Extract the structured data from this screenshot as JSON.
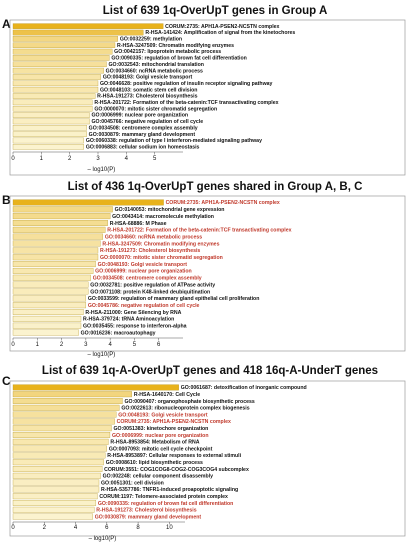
{
  "figure": {
    "colors": {
      "bar_dark": "#e8b21c",
      "bar_light": "#fbf3cf",
      "bar_stroke": "#b0901a",
      "highlight_text": "#c0392b",
      "frame": "#9a9a9a"
    }
  },
  "chart_data": [
    {
      "panel": "A",
      "type": "bar",
      "orientation": "horizontal",
      "title": "List of 639 1q-OverUpT genes in Group A",
      "xlabel": "– log10(P)",
      "xlim": [
        0,
        6
      ],
      "xticks": [
        "0",
        "1",
        "2",
        "3",
        "4",
        "5"
      ],
      "categories": [
        "CORUM:2735: APH1A-PSEN2-NCSTN complex",
        "R-HSA-141424: Amplification of signal from the kinetochores",
        "GO:0032259: methylation",
        "R-HSA-3247509: Chromatin modifying enzymes",
        "GO:0042157: lipoprotein metabolic process",
        "GO:0090335: regulation of brown fat cell differentiation",
        "GO:0032543: mitochondrial translation",
        "GO:0034660: ncRNA metabolic process",
        "GO:0048193: Golgi vesicle transport",
        "GO:0046628: positive regulation of insulin receptor signaling pathway",
        "GO:0048103: somatic stem cell division",
        "R-HSA-191273: Cholesterol biosynthesis",
        "R-HSA-201722: Formation of the beta-catenin:TCF transactivating complex",
        "GO:0000070: mitotic sister chromatid segregation",
        "GO:0006999: nuclear pore organization",
        "GO:0045766: negative regulation of cell cycle",
        "GO:0034508: centromere complex assembly",
        "GO:0030879: mammary gland development",
        "GO:0060338: regulation of type I interferon-mediated signaling pathway",
        "GO:0006883: cellular sodium ion homeostasis"
      ],
      "values": [
        5.3,
        4.6,
        3.7,
        3.6,
        3.5,
        3.4,
        3.3,
        3.2,
        3.1,
        3.0,
        3.0,
        2.9,
        2.8,
        2.8,
        2.7,
        2.7,
        2.6,
        2.6,
        2.5,
        2.5
      ],
      "highlighted": []
    },
    {
      "panel": "B",
      "type": "bar",
      "orientation": "horizontal",
      "title": "List of 436 1q-OverUpT genes shared in Group A, B, C",
      "xlabel": "– log10(P)",
      "xlim": [
        0,
        7
      ],
      "xticks": [
        "0",
        "1",
        "2",
        "3",
        "4",
        "5",
        "6"
      ],
      "categories": [
        "CORUM:2735: APH1A-PSEN2-NCSTN complex",
        "GO:0140053: mitochondrial gene expression",
        "GO:0043414: macromolecule methylation",
        "R-HSA-68886: M Phase",
        "R-HSA-201722: Formation of the beta-catenin:TCF transactivating complex",
        "GO:0034660: ncRNA metabolic process",
        "R-HSA-3247509: Chromatin modifying enzymes",
        "R-HSA-191273: Cholesterol biosynthesis",
        "GO:0000070: mitotic sister chromatid segregation",
        "GO:0048193: Golgi vesicle transport",
        "GO:0006999: nuclear pore organization",
        "GO:0034508: centromere complex assembly",
        "GO:0032781: positive regulation of ATPase activity",
        "GO:0071108: protein K48-linked deubiquitination",
        "GO:0033599: regulation of mammary gland epithelial cell proliferation",
        "GO:0045786: negative regulation of cell cycle",
        "R-HSA-211000: Gene Silencing by RNA",
        "R-HSA-379724: tRNA Aminoacylation",
        "GO:0035455: response to interferon-alpha",
        "GO:0016236: macroautophagy"
      ],
      "values": [
        6.2,
        4.1,
        4.0,
        3.9,
        3.8,
        3.7,
        3.6,
        3.5,
        3.5,
        3.4,
        3.3,
        3.2,
        3.1,
        3.1,
        3.0,
        3.0,
        2.9,
        2.8,
        2.8,
        2.7
      ],
      "highlighted": [
        0,
        4,
        5,
        6,
        7,
        8,
        9,
        10,
        11,
        15
      ]
    },
    {
      "panel": "C",
      "type": "bar",
      "orientation": "horizontal",
      "title": "List of 639 1q-A-OverUpT genes and 418 16q-A-UnderT genes",
      "xlabel": "– log10(P)",
      "xlim": [
        0,
        11
      ],
      "xticks": [
        "0",
        "2",
        "4",
        "6",
        "8",
        "10"
      ],
      "categories": [
        "GO:0061687: detoxification of inorganic compound",
        "R-HSA-1640170: Cell Cycle",
        "GO:0090407: organophosphate biosynthetic process",
        "GO:0022613: ribonucleoprotein complex biogenesis",
        "GO:0048193: Golgi vesicle transport",
        "CORUM:2735: APH1A-PSEN2-NCSTN complex",
        "GO:0051383: kinetochore organization",
        "GO:0006999: nuclear pore organization",
        "R-HSA-8953854: Metabolism of RNA",
        "GO:0007093: mitotic cell cycle checkpoint",
        "R-HSA-8953897: Cellular responses to external stimuli",
        "GO:0008610: lipid biosynthetic process",
        "CORUM:3551: COG1COG8-COG2-COG3COG4 subcomplex",
        "GO:002248: cellular component disassembly",
        "GO:0051301: cell division",
        "R-HSA-5357786: TNFR1-induced proapoptotic signaling",
        "CORUM:1197: Telomere-associated protein complex",
        "GO:0090335: regulation of brown fat cell differentiation",
        "R-HSA-191273: Cholesterol biosynthesis",
        "GO:0030879: mammary gland development"
      ],
      "values": [
        10.6,
        7.6,
        7.0,
        6.8,
        6.6,
        6.5,
        6.3,
        6.2,
        6.1,
        6.0,
        5.9,
        5.8,
        5.7,
        5.6,
        5.5,
        5.5,
        5.4,
        5.3,
        5.2,
        5.1
      ],
      "highlighted": [
        4,
        5,
        7,
        17,
        18,
        19
      ]
    }
  ]
}
